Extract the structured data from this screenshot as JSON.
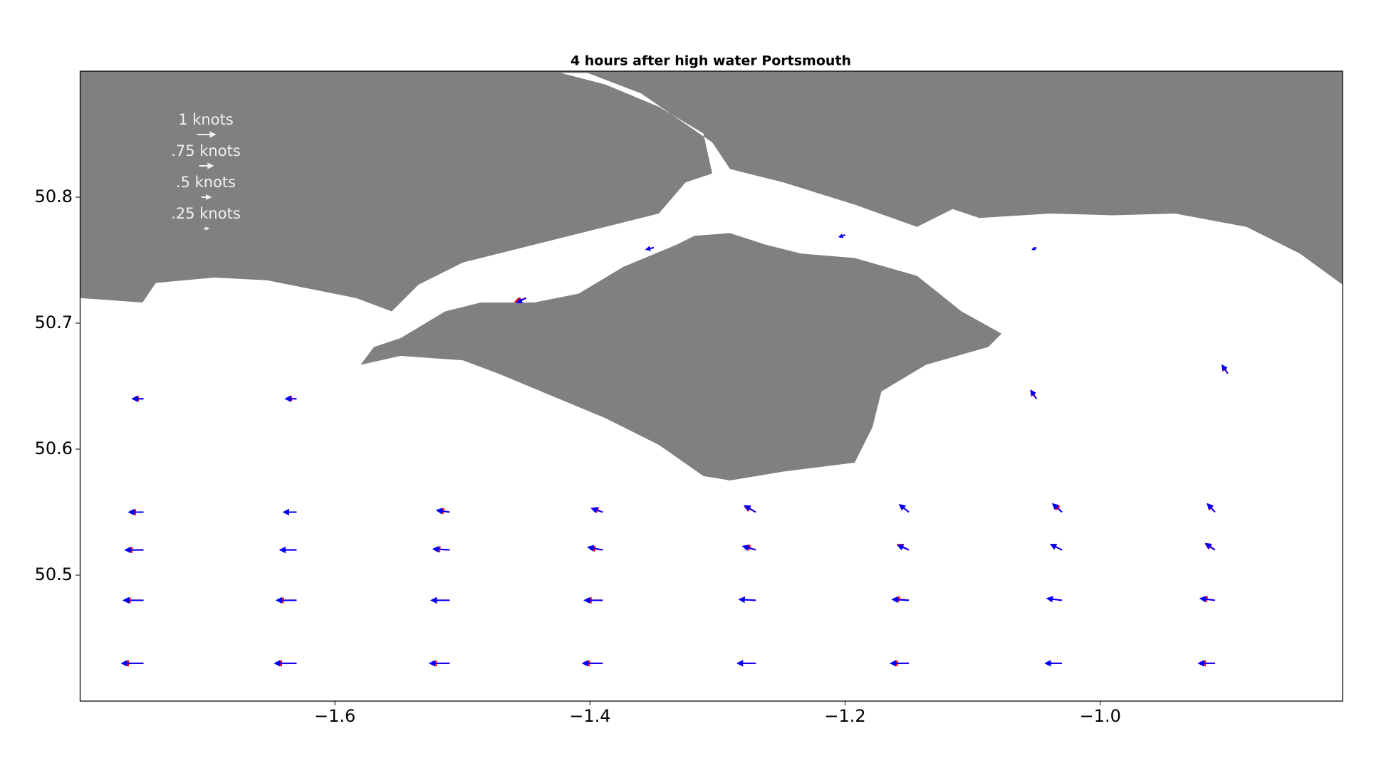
{
  "chart_data": {
    "type": "quiver",
    "title": "4 hours after high water Portsmouth",
    "xlim": [
      -1.8,
      -0.81
    ],
    "ylim": [
      50.4,
      50.9
    ],
    "xticks": [
      {
        "value": -1.6,
        "label": "−1.6"
      },
      {
        "value": -1.4,
        "label": "−1.4"
      },
      {
        "value": -1.2,
        "label": "−1.2"
      },
      {
        "value": -1.0,
        "label": "−1.0"
      }
    ],
    "yticks": [
      50.5,
      50.6,
      50.7,
      50.8
    ],
    "land_color": "#808080",
    "key": [
      {
        "label": "1 knots",
        "value": 1
      },
      {
        "label": ".75 knots",
        "value": 0.75
      },
      {
        "label": ".5 knots",
        "value": 0.5
      },
      {
        "label": ".25 knots",
        "value": 0.25
      }
    ],
    "series": [
      {
        "color": "#ff0000",
        "x": [
          -1.75,
          -1.63,
          -1.51,
          -1.39,
          -1.27,
          -1.15,
          -1.03,
          -0.91,
          -1.75,
          -1.63,
          -1.51,
          -1.39,
          -1.27,
          -1.15,
          -1.03,
          -0.91,
          -1.75,
          -1.63,
          -1.51,
          -1.39,
          -1.27,
          -1.15,
          -1.03,
          -0.91,
          -1.75,
          -1.63,
          -1.51,
          -1.39,
          -1.27,
          -1.15,
          -1.03,
          -0.91,
          -1.75,
          -1.63,
          -1.05,
          -0.9,
          -1.45,
          -1.35,
          -1.2,
          -1.05
        ],
        "y": [
          50.43,
          50.43,
          50.43,
          50.43,
          50.43,
          50.43,
          50.43,
          50.43,
          50.48,
          50.48,
          50.48,
          50.48,
          50.48,
          50.48,
          50.48,
          50.48,
          50.52,
          50.52,
          50.52,
          50.52,
          50.52,
          50.52,
          50.52,
          50.52,
          50.55,
          50.55,
          50.55,
          50.55,
          50.55,
          50.55,
          50.55,
          50.55,
          50.64,
          50.64,
          50.64,
          50.66,
          50.72,
          50.76,
          50.77,
          50.76
        ],
        "u": [
          -1.1,
          -1.1,
          -1.0,
          -1.0,
          -1.0,
          -0.9,
          -0.9,
          -0.8,
          -1.0,
          -1.0,
          -1.0,
          -0.9,
          -0.9,
          -0.8,
          -0.8,
          -0.7,
          -0.9,
          -0.9,
          -0.8,
          -0.7,
          -0.6,
          -0.6,
          -0.6,
          -0.5,
          -0.7,
          -0.7,
          -0.6,
          -0.5,
          -0.6,
          -0.5,
          -0.4,
          -0.4,
          -0.5,
          -0.5,
          -0.3,
          -0.3,
          -0.6,
          -0.4,
          -0.3,
          -0.2
        ],
        "v": [
          0,
          0,
          0,
          0,
          0,
          0,
          0,
          0,
          0,
          0,
          0,
          0,
          0.05,
          0.1,
          0.1,
          0.1,
          0,
          0,
          0.05,
          0.1,
          0.2,
          0.3,
          0.3,
          0.3,
          0,
          0,
          0.1,
          0.2,
          0.3,
          0.4,
          0.4,
          0.4,
          0,
          0,
          0.4,
          0.4,
          -0.2,
          -0.1,
          -0.1,
          -0.1
        ]
      },
      {
        "color": "#0000ff",
        "x": [
          -1.75,
          -1.63,
          -1.51,
          -1.39,
          -1.27,
          -1.15,
          -1.03,
          -0.91,
          -1.75,
          -1.63,
          -1.51,
          -1.39,
          -1.27,
          -1.15,
          -1.03,
          -0.91,
          -1.75,
          -1.63,
          -1.51,
          -1.39,
          -1.27,
          -1.15,
          -1.03,
          -0.91,
          -1.75,
          -1.63,
          -1.51,
          -1.39,
          -1.27,
          -1.15,
          -1.03,
          -0.91,
          -1.75,
          -1.63,
          -1.05,
          -0.9,
          -1.45,
          -1.35,
          -1.2,
          -1.05
        ],
        "y": [
          50.43,
          50.43,
          50.43,
          50.43,
          50.43,
          50.43,
          50.43,
          50.43,
          50.48,
          50.48,
          50.48,
          50.48,
          50.48,
          50.48,
          50.48,
          50.48,
          50.52,
          50.52,
          50.52,
          50.52,
          50.52,
          50.52,
          50.52,
          50.52,
          50.55,
          50.55,
          50.55,
          50.55,
          50.55,
          50.55,
          50.55,
          50.55,
          50.64,
          50.64,
          50.64,
          50.66,
          50.72,
          50.76,
          50.77,
          50.76
        ],
        "u": [
          -1.2,
          -1.2,
          -1.1,
          -1.1,
          -1.0,
          -1.0,
          -0.9,
          -0.9,
          -1.1,
          -1.1,
          -1.0,
          -1.0,
          -0.9,
          -0.9,
          -0.8,
          -0.8,
          -1.0,
          -0.9,
          -0.9,
          -0.8,
          -0.7,
          -0.6,
          -0.6,
          -0.5,
          -0.8,
          -0.7,
          -0.7,
          -0.6,
          -0.6,
          -0.5,
          -0.5,
          -0.4,
          -0.6,
          -0.6,
          -0.3,
          -0.3,
          -0.5,
          -0.4,
          -0.3,
          -0.2
        ],
        "v": [
          0,
          0,
          0,
          0,
          0,
          0,
          0,
          0,
          0,
          0,
          0,
          0,
          0.05,
          0.05,
          0.1,
          0.1,
          0,
          0,
          0.05,
          0.15,
          0.2,
          0.25,
          0.3,
          0.35,
          0,
          0,
          0.1,
          0.2,
          0.35,
          0.4,
          0.45,
          0.45,
          0,
          0,
          0.45,
          0.45,
          -0.25,
          -0.1,
          -0.1,
          -0.1
        ]
      }
    ]
  }
}
